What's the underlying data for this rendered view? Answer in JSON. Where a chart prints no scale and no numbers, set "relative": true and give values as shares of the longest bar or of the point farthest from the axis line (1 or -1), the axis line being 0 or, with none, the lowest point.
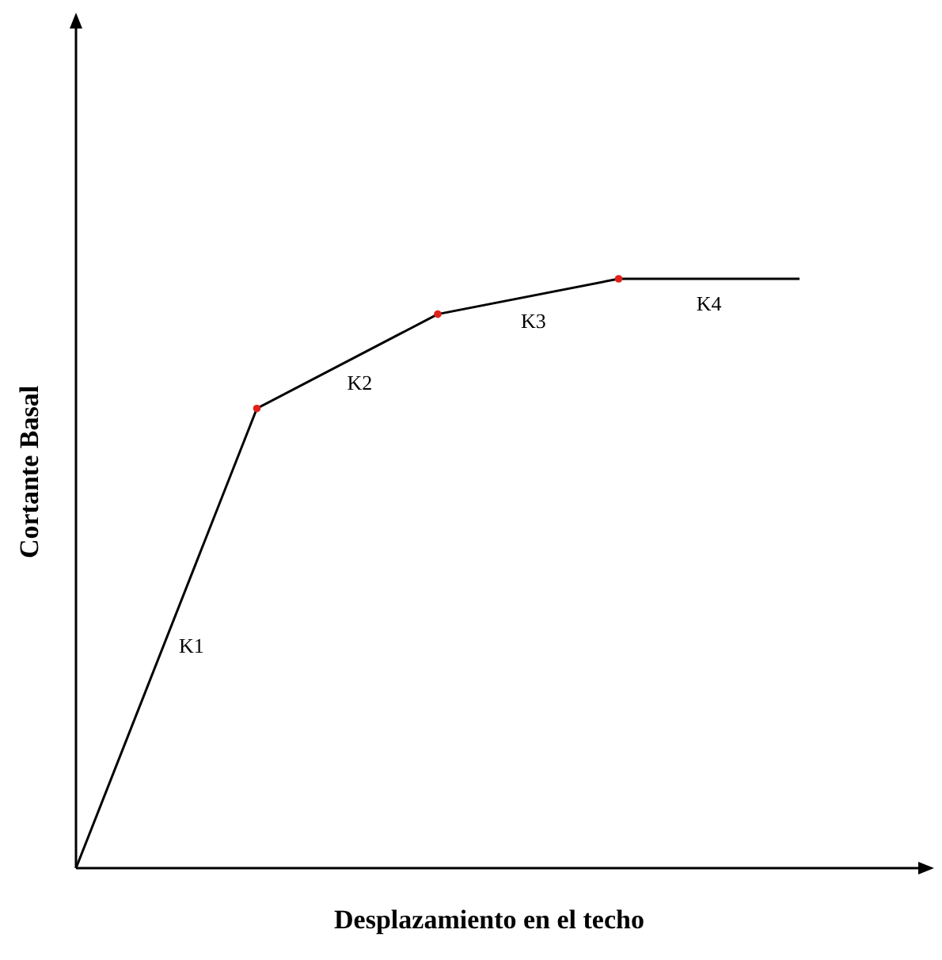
{
  "chart_data": {
    "type": "line",
    "relative": true,
    "categories": [
      null,
      null,
      null,
      null,
      null
    ],
    "xlabel": "Desplazamiento en el techo",
    "ylabel": "Cortante Basal",
    "series": [
      {
        "color": "#000000",
        "marker": "circle",
        "line_style": "solid",
        "values": [
          0,
          0.78,
          0.94,
          1,
          1
        ],
        "colors": [
          null,
          "#e0201b",
          "#e0201b",
          "#e0201b",
          null
        ]
      }
    ],
    "annotations": [
      "K1",
      "K2",
      "K3",
      "K4"
    ]
  }
}
